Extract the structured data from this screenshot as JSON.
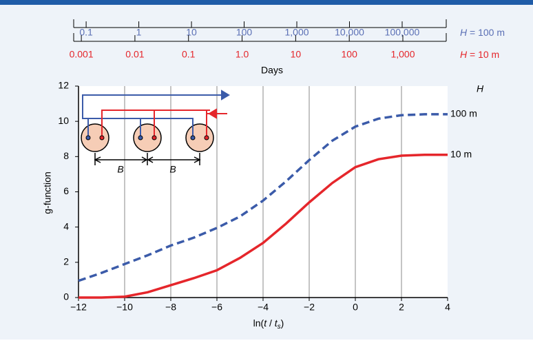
{
  "chart_data": {
    "type": "line",
    "y_label": "g-function",
    "x_label_parts": [
      "ln(",
      "t",
      " / ",
      "t",
      "s",
      ")"
    ],
    "xlim": [
      -12,
      4
    ],
    "xticks": [
      {
        "value": -12,
        "label": "−12"
      },
      {
        "value": -10,
        "label": "−10"
      },
      {
        "value": -8,
        "label": "−8"
      },
      {
        "value": -6,
        "label": "−6"
      },
      {
        "value": -4,
        "label": "−4"
      },
      {
        "value": -2,
        "label": "−2"
      },
      0,
      2,
      4
    ],
    "ylim": [
      0,
      12
    ],
    "yticks": [
      0,
      2,
      4,
      6,
      8,
      10,
      12
    ],
    "grid": "x",
    "legend_title": "H",
    "x": [
      -12,
      -11,
      -10,
      -9,
      -8,
      -7,
      -6,
      -5,
      -4,
      -3,
      -2,
      -1,
      0,
      1,
      2,
      3,
      4
    ],
    "series": [
      {
        "name": "100 m",
        "color": "#3b5ba9",
        "dash": true,
        "values": [
          0.95,
          1.4,
          1.9,
          2.4,
          2.95,
          3.4,
          3.95,
          4.6,
          5.5,
          6.6,
          7.8,
          8.9,
          9.7,
          10.15,
          10.35,
          10.4,
          10.4
        ]
      },
      {
        "name": "10 m",
        "color": "#e5262b",
        "dash": false,
        "values": [
          0,
          0,
          0.05,
          0.3,
          0.7,
          1.1,
          1.55,
          2.25,
          3.1,
          4.2,
          5.4,
          6.5,
          7.4,
          7.85,
          8.05,
          8.1,
          8.1
        ]
      }
    ],
    "top_axis_title": "Days",
    "top_axes": [
      {
        "label_var": "H",
        "label": "= 100 m",
        "color": "#5a6fb5",
        "scale": "log",
        "xlim": [
          0.058,
          687000
        ],
        "xticks": [
          0.1,
          1,
          10,
          100,
          {
            "value": 1000,
            "label": "1,000"
          },
          {
            "value": 10000,
            "label": "10,000"
          },
          {
            "value": 100000,
            "label": "100,000"
          }
        ]
      },
      {
        "label_var": "H",
        "label": "= 10 m",
        "color": "#e5262b",
        "scale": "log",
        "xlim": [
          0.00072,
          6450
        ],
        "xticks": [
          0.001,
          0.01,
          0.1,
          {
            "value": 1,
            "label": "1.0"
          },
          10,
          100,
          {
            "value": 1000,
            "label": "1,000"
          }
        ]
      }
    ],
    "annotations": [
      "B",
      "B"
    ]
  }
}
